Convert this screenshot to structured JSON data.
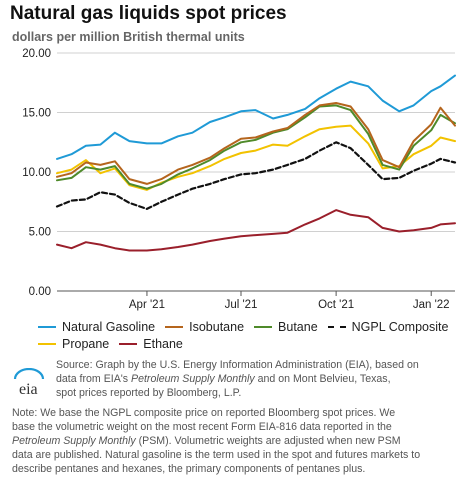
{
  "header": {
    "title": "Natural gas liquids spot prices",
    "subtitle": "dollars per million British thermal units"
  },
  "source": {
    "line1": "Source: Graph by the U.S. Energy Information Administration (EIA), based on",
    "line2a": "data from EIA's ",
    "line2_italic": "Petroleum Supply Monthly",
    "line2b": " and on Mont Belvieu, Texas,",
    "line3": "spot prices reported by Bloomberg, L.P."
  },
  "logo": {
    "text": "eia"
  },
  "note": {
    "line1": "Note: We base the NGPL composite price on reported Bloomberg spot prices. We",
    "line2": "base the volumetric weight on the most recent Form EIA-816 data reported in the",
    "line3a": "",
    "line3_italic": "Petroleum Supply Monthly",
    "line3b": " (PSM). Volumetric weights are adjusted when new PSM",
    "line4": "data are published. Natural gasoline is the term used in the spot and futures markets to",
    "line5": "describe pentanes and hexanes, the primary components of pentanes plus."
  },
  "colors": {
    "natural_gasoline": "#1f9ad6",
    "isobutane": "#b5651d",
    "butane": "#4f8a2a",
    "ngpl": "#111111",
    "propane": "#f2c200",
    "ethane": "#9a1f2b",
    "grid": "#d0d0d0"
  },
  "chart_data": {
    "type": "line",
    "title": "Natural gas liquids spot prices",
    "ylabel": "dollars per million British thermal units",
    "xlabel": "",
    "ylim": [
      0,
      20
    ],
    "y_ticks": [
      "0.00",
      "5.00",
      "10.00",
      "15.00",
      "20.00"
    ],
    "x_ticks": [
      {
        "label": "Apr '21",
        "date": "2021-04-01"
      },
      {
        "label": "Jul '21",
        "date": "2021-07-01"
      },
      {
        "label": "Oct '21",
        "date": "2021-10-01"
      },
      {
        "label": "Jan '22",
        "date": "2022-01-01"
      }
    ],
    "x_range": [
      "2021-01-04",
      "2022-01-24"
    ],
    "grid": true,
    "legend_position": "bottom",
    "x": [
      "2021-01-04",
      "2021-01-18",
      "2021-02-01",
      "2021-02-15",
      "2021-03-01",
      "2021-03-15",
      "2021-04-01",
      "2021-04-15",
      "2021-05-01",
      "2021-05-15",
      "2021-06-01",
      "2021-06-15",
      "2021-07-01",
      "2021-07-15",
      "2021-08-01",
      "2021-08-15",
      "2021-09-01",
      "2021-09-15",
      "2021-10-01",
      "2021-10-15",
      "2021-11-01",
      "2021-11-15",
      "2021-12-01",
      "2021-12-15",
      "2022-01-01",
      "2022-01-10",
      "2022-01-24"
    ],
    "series": [
      {
        "name": "Natural Gasoline",
        "style": "solid",
        "values": [
          11.1,
          11.5,
          12.2,
          12.3,
          13.3,
          12.6,
          12.4,
          12.4,
          13.0,
          13.3,
          14.2,
          14.6,
          15.1,
          15.2,
          14.5,
          14.8,
          15.3,
          16.2,
          17.0,
          17.6,
          17.2,
          16.0,
          15.1,
          15.6,
          16.8,
          17.2,
          18.1
        ]
      },
      {
        "name": "Isobutane",
        "style": "solid",
        "values": [
          9.6,
          9.9,
          10.8,
          10.6,
          10.9,
          9.4,
          9.0,
          9.4,
          10.2,
          10.6,
          11.2,
          12.0,
          12.8,
          12.9,
          13.4,
          13.7,
          14.8,
          15.6,
          15.8,
          15.5,
          13.6,
          11.0,
          10.4,
          12.6,
          14.0,
          15.4,
          13.9
        ]
      },
      {
        "name": "Butane",
        "style": "solid",
        "values": [
          9.3,
          9.5,
          10.4,
          10.2,
          10.5,
          9.0,
          8.6,
          9.0,
          9.8,
          10.3,
          11.0,
          11.8,
          12.5,
          12.7,
          13.3,
          13.6,
          14.6,
          15.5,
          15.6,
          15.2,
          13.2,
          10.6,
          10.2,
          12.2,
          13.5,
          14.8,
          14.1
        ]
      },
      {
        "name": "NGPL Composite",
        "style": "dashed",
        "values": [
          7.1,
          7.6,
          7.7,
          8.3,
          8.1,
          7.4,
          6.9,
          7.5,
          8.1,
          8.6,
          9.0,
          9.4,
          9.8,
          9.9,
          10.2,
          10.6,
          11.1,
          11.8,
          12.5,
          12.0,
          10.6,
          9.4,
          9.5,
          10.1,
          10.7,
          11.1,
          10.8
        ]
      },
      {
        "name": "Propane",
        "style": "solid",
        "values": [
          9.9,
          10.2,
          11.0,
          9.9,
          10.3,
          8.9,
          8.5,
          9.1,
          9.6,
          9.9,
          10.5,
          11.1,
          11.6,
          11.8,
          12.3,
          12.2,
          13.0,
          13.6,
          13.8,
          13.9,
          12.4,
          10.3,
          10.5,
          11.5,
          12.2,
          12.9,
          12.6
        ]
      },
      {
        "name": "Ethane",
        "style": "solid",
        "values": [
          3.9,
          3.6,
          4.1,
          3.9,
          3.6,
          3.4,
          3.4,
          3.5,
          3.7,
          3.9,
          4.2,
          4.4,
          4.6,
          4.7,
          4.8,
          4.9,
          5.6,
          6.1,
          6.8,
          6.4,
          6.2,
          5.3,
          5.0,
          5.1,
          5.3,
          5.6,
          5.7
        ]
      }
    ]
  }
}
